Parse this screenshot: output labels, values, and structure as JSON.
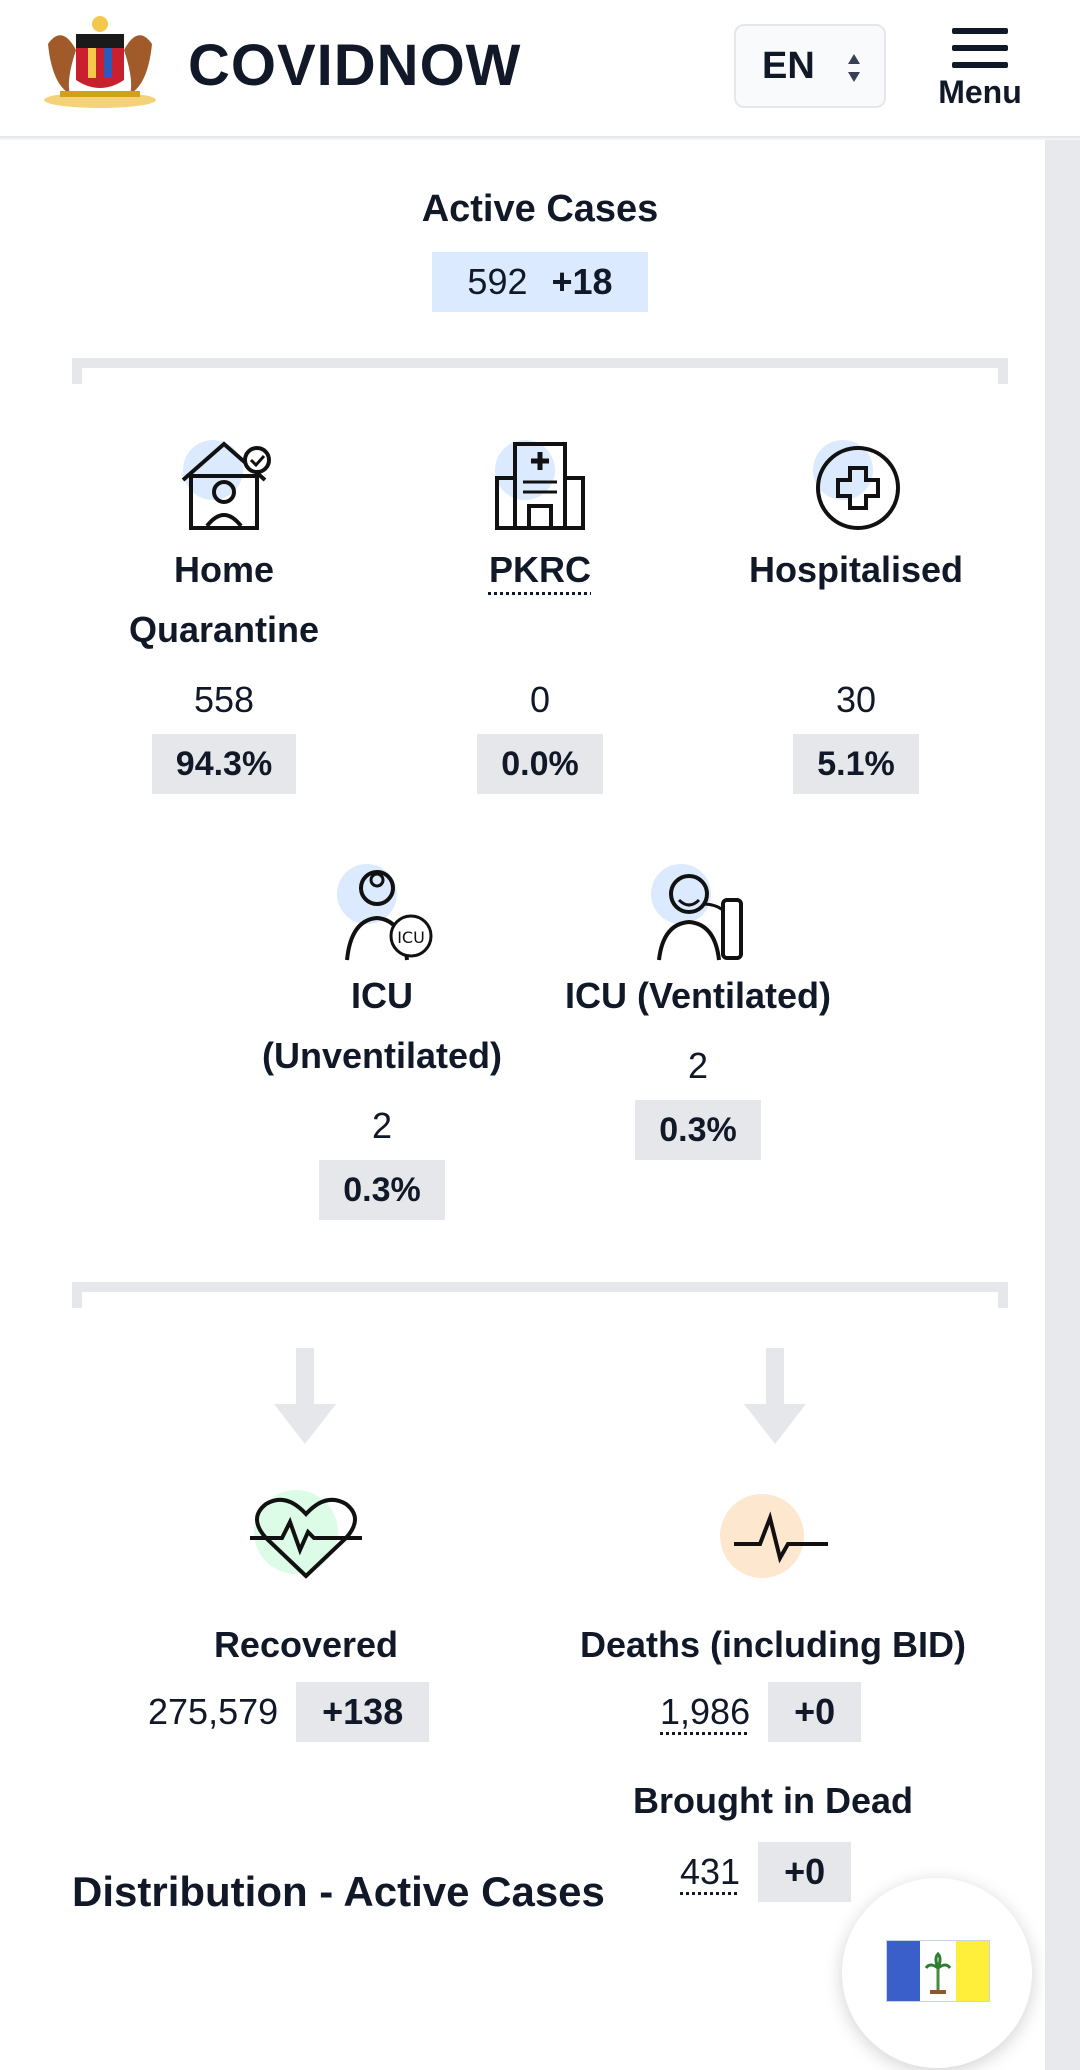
{
  "header": {
    "brand": "COVIDNOW",
    "language": "EN",
    "menu_label": "Menu"
  },
  "active_cases": {
    "title": "Active Cases",
    "value": "592",
    "delta": "+18"
  },
  "breakdown": [
    {
      "label": "Home Quarantine",
      "count": "558",
      "percent": "94.3%"
    },
    {
      "label": "PKRC",
      "count": "0",
      "percent": "0.0%"
    },
    {
      "label": "Hospitalised",
      "count": "30",
      "percent": "5.1%"
    },
    {
      "label": "ICU (Unventilated)",
      "count": "2",
      "percent": "0.3%"
    },
    {
      "label": "ICU (Ventilated)",
      "count": "2",
      "percent": "0.3%"
    }
  ],
  "recovered": {
    "label": "Recovered",
    "value": "275,579",
    "delta": "+138"
  },
  "deaths": {
    "label": "Deaths (including BID)",
    "value": "1,986",
    "delta": "+0"
  },
  "bid": {
    "label": "Brought in Dead",
    "value": "431",
    "delta": "+0"
  },
  "distribution_heading": "Distribution - Active Cases",
  "colors": {
    "accent_blue": "#dbeafe",
    "neutral_badge": "#e5e7eb",
    "recovered_green": "#dcfce7",
    "death_orange": "#fde7cf",
    "flag_blue": "#3b5fc9",
    "flag_yellow": "#ffef3a"
  }
}
